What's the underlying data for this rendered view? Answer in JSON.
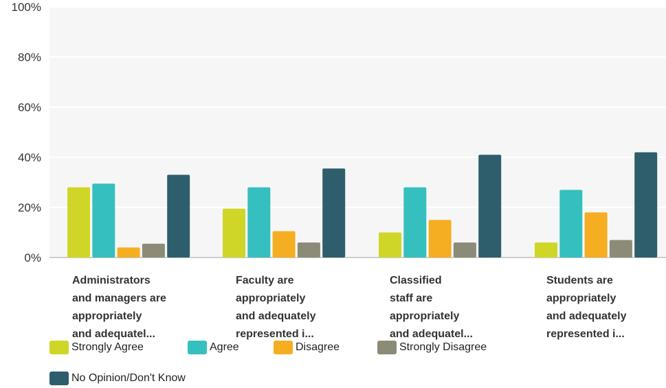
{
  "chart_data": {
    "type": "bar",
    "categories": [
      "Administrators\nand managers are\nappropriately\nand adequatel...",
      "Faculty are\nappropriately\nand adequately\nrepresented i...",
      "Classified\nstaff are\nappropriately\nand adequatel...",
      "Students are\nappropriately\nand adequately\nrepresented i..."
    ],
    "series": [
      {
        "name": "Strongly Agree",
        "color": "#cfd628",
        "values": [
          28,
          19.5,
          10,
          6
        ]
      },
      {
        "name": "Agree",
        "color": "#36bfbf",
        "values": [
          29.5,
          28,
          28,
          27
        ]
      },
      {
        "name": "Disagree",
        "color": "#f5ae22",
        "values": [
          4,
          10.5,
          15,
          18
        ]
      },
      {
        "name": "Strongly Disagree",
        "color": "#8b8b78",
        "values": [
          5.5,
          6,
          6,
          7
        ]
      },
      {
        "name": "No Opinion/Don't Know",
        "color": "#2e5e6b",
        "values": [
          33,
          35.5,
          41,
          42
        ]
      }
    ],
    "yticks": [
      "0%",
      "20%",
      "40%",
      "60%",
      "80%",
      "100%"
    ],
    "ylim": [
      0,
      100
    ],
    "grid": true,
    "legend_position": "bottom"
  }
}
